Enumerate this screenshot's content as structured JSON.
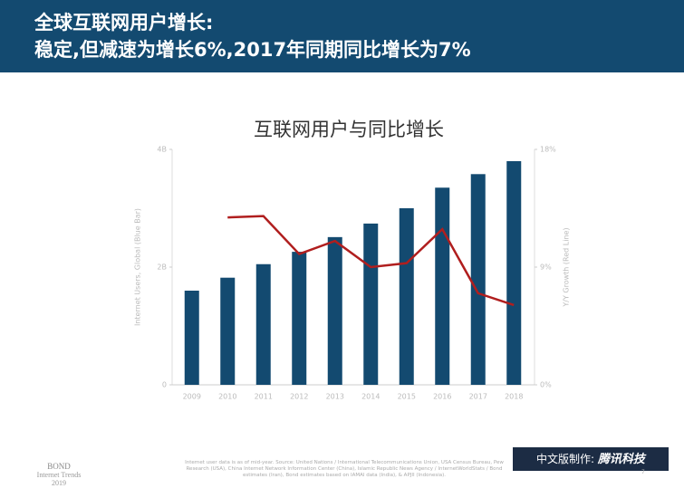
{
  "header": {
    "title_line1": "全球互联网用户增长:",
    "title_line2": "稳定,但减速为增长6%,2017年同期同比增长为7%"
  },
  "chart_data": {
    "type": "bar",
    "title": "互联网用户与同比增长",
    "categories": [
      "2009",
      "2010",
      "2011",
      "2012",
      "2013",
      "2014",
      "2015",
      "2016",
      "2017",
      "2018"
    ],
    "series": [
      {
        "type": "bar",
        "color": "#134a70",
        "values": [
          1.6,
          1.82,
          2.05,
          2.26,
          2.51,
          2.74,
          3.0,
          3.35,
          3.58,
          3.8
        ]
      },
      {
        "type": "line",
        "axis": "y2",
        "color": "#b01e1e",
        "values": [
          null,
          12.8,
          12.9,
          10.0,
          11.0,
          9.0,
          9.3,
          11.9,
          7.0,
          6.1
        ]
      }
    ],
    "ylabel": "Internet Users, Global (Blue Bar)",
    "y2label": "Y/Y Growth (Red Line)",
    "ylim": [
      0,
      4
    ],
    "yticks": [
      0,
      {
        "value": 2,
        "label": "2B"
      },
      {
        "value": 4,
        "label": "4B"
      }
    ],
    "y2lim": [
      0,
      18
    ],
    "y2ticks": [
      {
        "value": 0,
        "label": "0%"
      },
      {
        "value": 9,
        "label": "9%"
      },
      {
        "value": 18,
        "label": "18%"
      }
    ]
  },
  "footer": {
    "source": "Internet user data is as of mid-year. Source: United Nations / International Telecommunications Union, USA Census Bureau, Pew Research (USA), China Internet Network Information Center (China), Islamic Republic News Agency / InternetWorldStats / Bond estimates (Iran), Bond estimates based on IAMAI data (India), & APJII (Indonesia).",
    "bond": "BOND",
    "bond_sub": "Internet Trends",
    "bond_year": "2019",
    "credit_label": "中文版制作:",
    "credit_name": "腾讯科技",
    "page": "7"
  }
}
